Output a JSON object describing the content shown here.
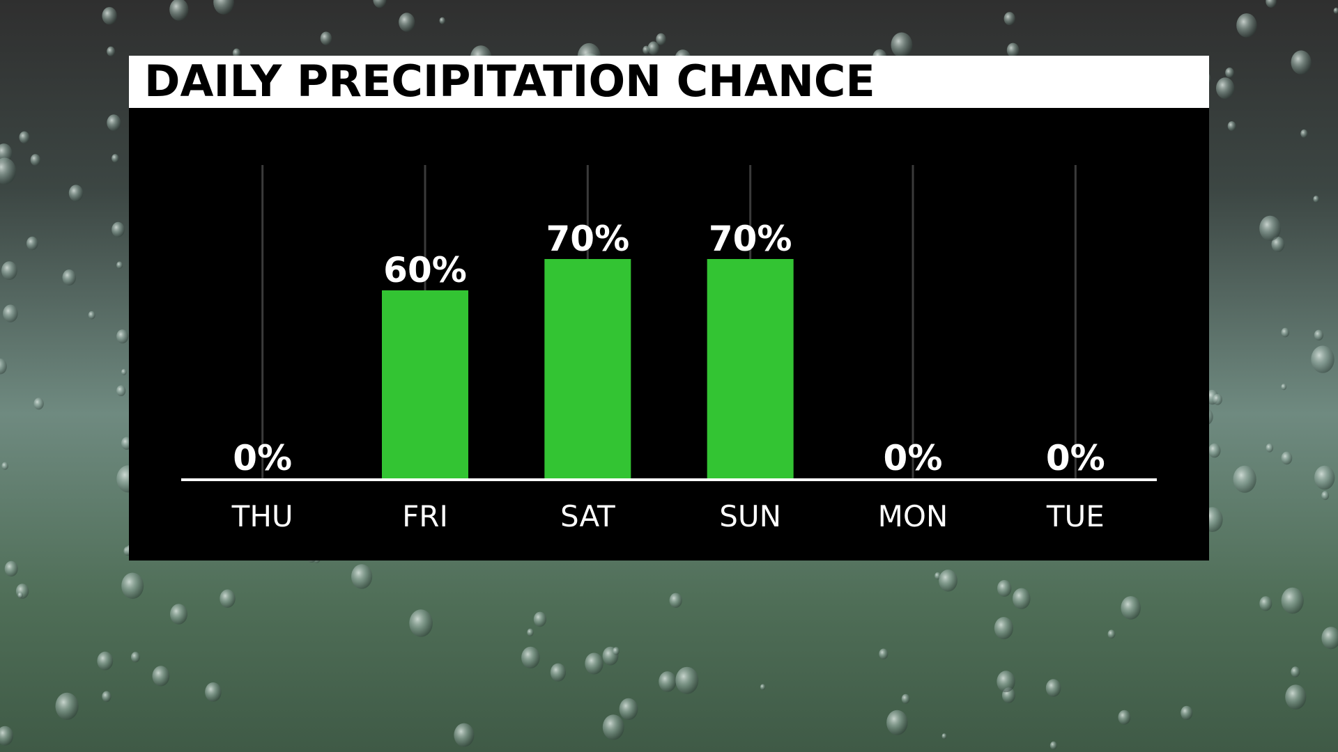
{
  "chart_data": {
    "type": "bar",
    "title": "DAILY PRECIPITATION CHANCE",
    "categories": [
      "THU",
      "FRI",
      "SAT",
      "SUN",
      "MON",
      "TUE"
    ],
    "values": [
      0,
      60,
      70,
      70,
      0,
      0
    ],
    "value_labels": [
      "0%",
      "60%",
      "70%",
      "70%",
      "0%",
      "0%"
    ],
    "unit": "%",
    "ylim": [
      0,
      100
    ],
    "grid": true,
    "legend": "none"
  },
  "colors": {
    "bar": "#33c433",
    "panel_background": "#000000",
    "title_background": "#ffffff",
    "title_text": "#000000",
    "label_text": "#ffffff",
    "gridline": "#3a3a3a",
    "baseline": "#ffffff"
  },
  "background": {
    "description_icon": "raindrops-on-glass"
  }
}
